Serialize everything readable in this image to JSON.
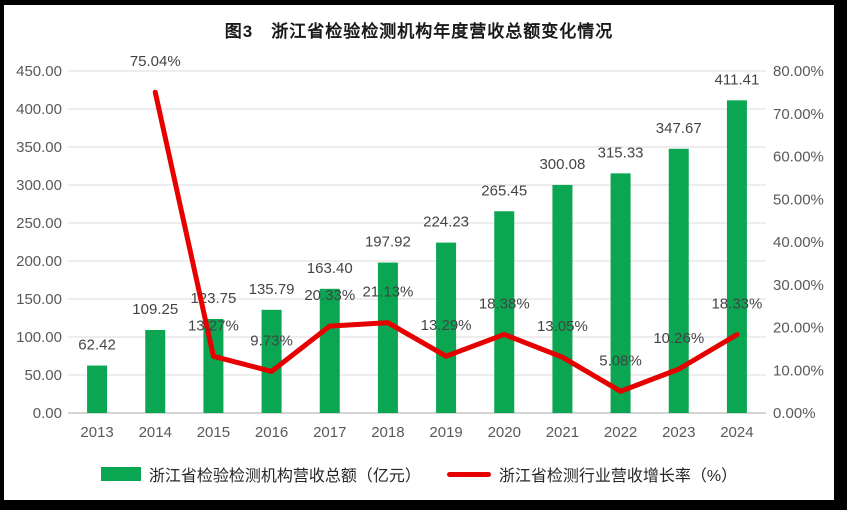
{
  "figure_title": "图3　浙江省检验检测机构年度营收总额变化情况",
  "chart_data": {
    "type": "combo-bar-line",
    "title": "图3　浙江省检验检测机构年度营收总额变化情况",
    "categories": [
      "2013",
      "2014",
      "2015",
      "2016",
      "2017",
      "2018",
      "2019",
      "2020",
      "2021",
      "2022",
      "2023",
      "2024"
    ],
    "series": [
      {
        "name": "浙江省检验检测机构营收总额（亿元）",
        "type": "bar",
        "axis": "left",
        "values": [
          62.42,
          109.25,
          123.75,
          135.79,
          163.4,
          197.92,
          224.23,
          265.45,
          300.08,
          315.33,
          347.67,
          411.41
        ],
        "labels": [
          "62.42",
          "109.25",
          "123.75",
          "135.79",
          "163.40",
          "197.92",
          "224.23",
          "265.45",
          "300.08",
          "315.33",
          "347.67",
          "411.41"
        ]
      },
      {
        "name": "浙江省检测行业营收增长率（%）",
        "type": "line",
        "axis": "right",
        "values": [
          null,
          75.04,
          13.27,
          9.73,
          20.33,
          21.13,
          13.29,
          18.38,
          13.05,
          5.08,
          10.26,
          18.33
        ],
        "labels": [
          "",
          "75.04%",
          "13.27%",
          "9.73%",
          "20.33%",
          "21.13%",
          "13.29%",
          "18.38%",
          "13.05%",
          "5.08%",
          "10.26%",
          "18.33%"
        ]
      }
    ],
    "left_axis": {
      "min": 0,
      "max": 450,
      "step": 50,
      "tick_labels": [
        "0.00",
        "50.00",
        "100.00",
        "150.00",
        "200.00",
        "250.00",
        "300.00",
        "350.00",
        "400.00",
        "450.00"
      ]
    },
    "right_axis": {
      "min": 0,
      "max": 80,
      "step": 10,
      "tick_labels": [
        "0.00%",
        "10.00%",
        "20.00%",
        "30.00%",
        "40.00%",
        "50.00%",
        "60.00%",
        "70.00%",
        "80.00%"
      ]
    },
    "grid": true,
    "legend_position": "bottom"
  },
  "colors": {
    "bar": "#0aa652",
    "line": "#e60000",
    "grid": "#e2e2e2",
    "axis_line": "#c6c6c6",
    "frame": "#000000",
    "background": "#ffffff"
  }
}
